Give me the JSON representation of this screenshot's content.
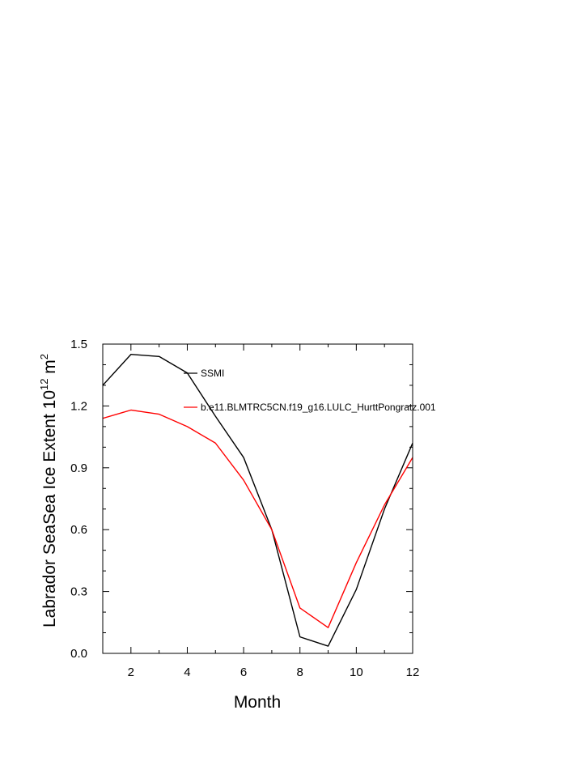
{
  "chart_data": {
    "type": "line",
    "xlabel": "Month",
    "ylabel": "Labrador SeaSea Ice Extent 10",
    "ylabel_sup": "12",
    "ylabel_unit": " m",
    "ylabel_unit_sup": "2",
    "xlim": [
      1,
      12
    ],
    "ylim": [
      0.0,
      1.5
    ],
    "x_ticks": [
      2,
      4,
      6,
      8,
      10,
      12
    ],
    "x_tick_labels": [
      "2",
      "4",
      "6",
      "8",
      "10",
      "12"
    ],
    "y_ticks": [
      0.0,
      0.3,
      0.6,
      0.9,
      1.2,
      1.5
    ],
    "y_tick_labels": [
      "0.0",
      "0.3",
      "0.6",
      "0.9",
      "1.2",
      "1.5"
    ],
    "x": [
      1,
      2,
      3,
      4,
      5,
      6,
      7,
      8,
      9,
      10,
      11,
      12
    ],
    "series": [
      {
        "name": "SSMI",
        "color": "#000000",
        "values": [
          1.3,
          1.45,
          1.44,
          1.36,
          1.15,
          0.95,
          0.6,
          0.08,
          0.035,
          0.31,
          0.7,
          1.02
        ]
      },
      {
        "name": "b.e11.BLMTRC5CN.f19_g16.LULC_HurttPongratz.001",
        "color": "#ff0000",
        "values": [
          1.14,
          1.18,
          1.16,
          1.1,
          1.02,
          0.84,
          0.6,
          0.22,
          0.125,
          0.44,
          0.72,
          0.95
        ]
      }
    ],
    "grid": false,
    "legend_position": "inside-top-right"
  }
}
